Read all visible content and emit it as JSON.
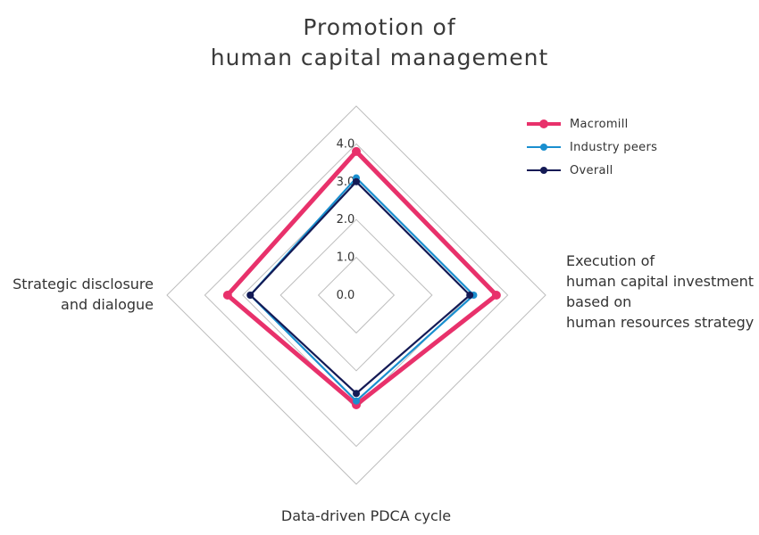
{
  "chart_data": {
    "type": "radar",
    "title_lines": [
      "Promotion of",
      "human capital management"
    ],
    "axes": [
      {
        "name": "top",
        "label_lines": []
      },
      {
        "name": "right",
        "label_lines": [
          "Execution of",
          "human capital investment",
          "based on",
          "human resources strategy"
        ]
      },
      {
        "name": "bottom",
        "label_lines": [
          "Data-driven PDCA cycle"
        ]
      },
      {
        "name": "left",
        "label_lines": [
          "Strategic disclosure",
          "and dialogue"
        ]
      }
    ],
    "ticks": [
      "0.0",
      "1.0",
      "2.0",
      "3.0",
      "4.0"
    ],
    "rlim": [
      0,
      5
    ],
    "series": [
      {
        "name": "Macromill",
        "color": "#e8316b",
        "values": [
          3.8,
          3.7,
          2.9,
          3.4
        ]
      },
      {
        "name": "Industry peers",
        "color": "#1a8fcf",
        "values": [
          3.1,
          3.1,
          2.8,
          2.8
        ]
      },
      {
        "name": "Overall",
        "color": "#141a55",
        "values": [
          3.0,
          3.0,
          2.6,
          2.8
        ]
      }
    ],
    "legend_position": "top-right",
    "grid": true
  }
}
